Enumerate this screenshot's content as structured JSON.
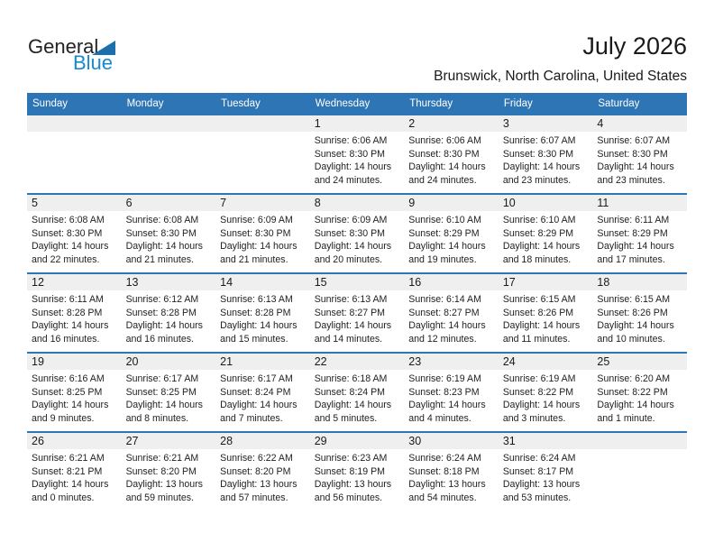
{
  "logo": {
    "general": "General",
    "blue": "Blue"
  },
  "header": {
    "title": "July 2026",
    "subtitle": "Brunswick, North Carolina, United States"
  },
  "labels": {
    "sunrise": "Sunrise:",
    "sunset": "Sunset:",
    "daylight": "Daylight:"
  },
  "colors": {
    "header_blue": "#2e75b6",
    "row_border_blue": "#2e75b6",
    "strip_gray": "#efefef",
    "logo_blue": "#1789ce",
    "logo_dark": "#232323"
  },
  "calendar": {
    "weekdays": [
      "Sunday",
      "Monday",
      "Tuesday",
      "Wednesday",
      "Thursday",
      "Friday",
      "Saturday"
    ],
    "weeks": [
      [
        null,
        null,
        null,
        {
          "date": "1",
          "sunrise": "6:06 AM",
          "sunset": "8:30 PM",
          "daylight": "14 hours and 24 minutes."
        },
        {
          "date": "2",
          "sunrise": "6:06 AM",
          "sunset": "8:30 PM",
          "daylight": "14 hours and 24 minutes."
        },
        {
          "date": "3",
          "sunrise": "6:07 AM",
          "sunset": "8:30 PM",
          "daylight": "14 hours and 23 minutes."
        },
        {
          "date": "4",
          "sunrise": "6:07 AM",
          "sunset": "8:30 PM",
          "daylight": "14 hours and 23 minutes."
        }
      ],
      [
        {
          "date": "5",
          "sunrise": "6:08 AM",
          "sunset": "8:30 PM",
          "daylight": "14 hours and 22 minutes."
        },
        {
          "date": "6",
          "sunrise": "6:08 AM",
          "sunset": "8:30 PM",
          "daylight": "14 hours and 21 minutes."
        },
        {
          "date": "7",
          "sunrise": "6:09 AM",
          "sunset": "8:30 PM",
          "daylight": "14 hours and 21 minutes."
        },
        {
          "date": "8",
          "sunrise": "6:09 AM",
          "sunset": "8:30 PM",
          "daylight": "14 hours and 20 minutes."
        },
        {
          "date": "9",
          "sunrise": "6:10 AM",
          "sunset": "8:29 PM",
          "daylight": "14 hours and 19 minutes."
        },
        {
          "date": "10",
          "sunrise": "6:10 AM",
          "sunset": "8:29 PM",
          "daylight": "14 hours and 18 minutes."
        },
        {
          "date": "11",
          "sunrise": "6:11 AM",
          "sunset": "8:29 PM",
          "daylight": "14 hours and 17 minutes."
        }
      ],
      [
        {
          "date": "12",
          "sunrise": "6:11 AM",
          "sunset": "8:28 PM",
          "daylight": "14 hours and 16 minutes."
        },
        {
          "date": "13",
          "sunrise": "6:12 AM",
          "sunset": "8:28 PM",
          "daylight": "14 hours and 16 minutes."
        },
        {
          "date": "14",
          "sunrise": "6:13 AM",
          "sunset": "8:28 PM",
          "daylight": "14 hours and 15 minutes."
        },
        {
          "date": "15",
          "sunrise": "6:13 AM",
          "sunset": "8:27 PM",
          "daylight": "14 hours and 14 minutes."
        },
        {
          "date": "16",
          "sunrise": "6:14 AM",
          "sunset": "8:27 PM",
          "daylight": "14 hours and 12 minutes."
        },
        {
          "date": "17",
          "sunrise": "6:15 AM",
          "sunset": "8:26 PM",
          "daylight": "14 hours and 11 minutes."
        },
        {
          "date": "18",
          "sunrise": "6:15 AM",
          "sunset": "8:26 PM",
          "daylight": "14 hours and 10 minutes."
        }
      ],
      [
        {
          "date": "19",
          "sunrise": "6:16 AM",
          "sunset": "8:25 PM",
          "daylight": "14 hours and 9 minutes."
        },
        {
          "date": "20",
          "sunrise": "6:17 AM",
          "sunset": "8:25 PM",
          "daylight": "14 hours and 8 minutes."
        },
        {
          "date": "21",
          "sunrise": "6:17 AM",
          "sunset": "8:24 PM",
          "daylight": "14 hours and 7 minutes."
        },
        {
          "date": "22",
          "sunrise": "6:18 AM",
          "sunset": "8:24 PM",
          "daylight": "14 hours and 5 minutes."
        },
        {
          "date": "23",
          "sunrise": "6:19 AM",
          "sunset": "8:23 PM",
          "daylight": "14 hours and 4 minutes."
        },
        {
          "date": "24",
          "sunrise": "6:19 AM",
          "sunset": "8:22 PM",
          "daylight": "14 hours and 3 minutes."
        },
        {
          "date": "25",
          "sunrise": "6:20 AM",
          "sunset": "8:22 PM",
          "daylight": "14 hours and 1 minute."
        }
      ],
      [
        {
          "date": "26",
          "sunrise": "6:21 AM",
          "sunset": "8:21 PM",
          "daylight": "14 hours and 0 minutes."
        },
        {
          "date": "27",
          "sunrise": "6:21 AM",
          "sunset": "8:20 PM",
          "daylight": "13 hours and 59 minutes."
        },
        {
          "date": "28",
          "sunrise": "6:22 AM",
          "sunset": "8:20 PM",
          "daylight": "13 hours and 57 minutes."
        },
        {
          "date": "29",
          "sunrise": "6:23 AM",
          "sunset": "8:19 PM",
          "daylight": "13 hours and 56 minutes."
        },
        {
          "date": "30",
          "sunrise": "6:24 AM",
          "sunset": "8:18 PM",
          "daylight": "13 hours and 54 minutes."
        },
        {
          "date": "31",
          "sunrise": "6:24 AM",
          "sunset": "8:17 PM",
          "daylight": "13 hours and 53 minutes."
        },
        null
      ]
    ]
  }
}
